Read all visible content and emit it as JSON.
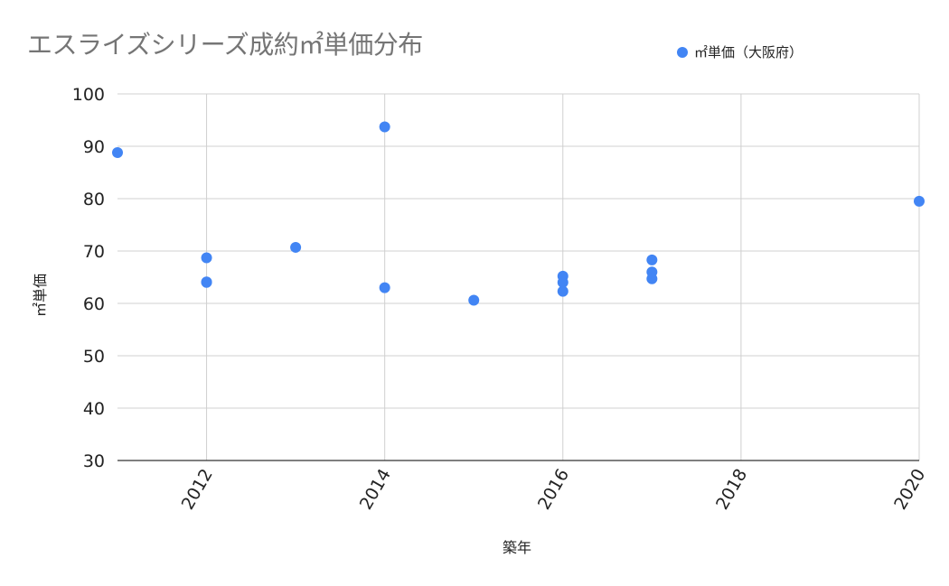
{
  "chart_data": {
    "type": "scatter",
    "title": "エスライズシリーズ成約㎡単価分布",
    "xlabel": "築年",
    "ylabel": "㎡単価",
    "xlim": [
      2011,
      2020
    ],
    "ylim": [
      30,
      100
    ],
    "x_ticks": [
      2012,
      2014,
      2016,
      2018,
      2020
    ],
    "y_ticks": [
      30,
      40,
      50,
      60,
      70,
      80,
      90,
      100
    ],
    "grid": true,
    "legend_position": "top-right",
    "series": [
      {
        "name": "㎡単価（大阪府）",
        "color": "#4285f4",
        "points": [
          {
            "x": 2011,
            "y": 88.8
          },
          {
            "x": 2012,
            "y": 68.7
          },
          {
            "x": 2012,
            "y": 64.1
          },
          {
            "x": 2012,
            "y": 64.0
          },
          {
            "x": 2013,
            "y": 70.7
          },
          {
            "x": 2014,
            "y": 93.7
          },
          {
            "x": 2014,
            "y": 63.0
          },
          {
            "x": 2015,
            "y": 60.6
          },
          {
            "x": 2016,
            "y": 65.2
          },
          {
            "x": 2016,
            "y": 64.0
          },
          {
            "x": 2016,
            "y": 62.3
          },
          {
            "x": 2017,
            "y": 68.3
          },
          {
            "x": 2017,
            "y": 66.0
          },
          {
            "x": 2017,
            "y": 64.7
          },
          {
            "x": 2020,
            "y": 79.5
          }
        ]
      }
    ]
  }
}
